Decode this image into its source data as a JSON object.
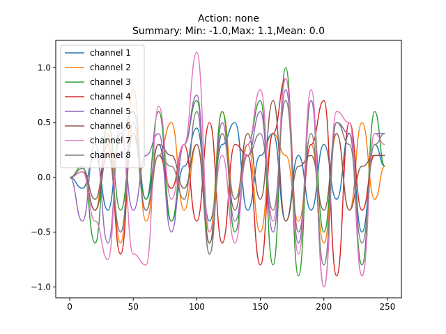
{
  "chart_data": {
    "type": "line",
    "title": "Action: none",
    "subtitle": "Summary: Min: -1.0,Max: 1.1,Mean: 0.0",
    "xlabel": "",
    "ylabel": "",
    "xlim": [
      -11,
      261
    ],
    "ylim": [
      -1.1,
      1.25
    ],
    "xticks": [
      "0",
      "50",
      "100",
      "150",
      "200",
      "250"
    ],
    "yticks": [
      "−1.0",
      "−0.5",
      "0.0",
      "0.5",
      "1.0"
    ],
    "grid": false,
    "legend": "top-left",
    "series": [
      {
        "name": "channel 1",
        "color": "#1f77b4",
        "x": [
          0,
          10,
          20,
          30,
          40,
          50,
          60,
          70,
          80,
          90,
          100,
          110,
          120,
          130,
          140,
          150,
          160,
          170,
          180,
          190,
          200,
          210,
          220,
          230,
          240,
          248
        ],
        "y": [
          0.0,
          -0.1,
          0.2,
          -0.3,
          0.4,
          0.6,
          -0.2,
          0.3,
          -0.4,
          0.1,
          0.45,
          -0.4,
          0.3,
          0.5,
          -0.3,
          0.2,
          0.4,
          -0.4,
          0.2,
          -0.3,
          0.3,
          -0.2,
          0.4,
          -0.5,
          0.3,
          0.1
        ]
      },
      {
        "name": "channel 2",
        "color": "#ff7f0e",
        "x": [
          0,
          10,
          20,
          30,
          40,
          50,
          60,
          70,
          80,
          90,
          100,
          110,
          120,
          130,
          140,
          150,
          160,
          170,
          180,
          190,
          200,
          210,
          220,
          230,
          240,
          248
        ],
        "y": [
          0.0,
          0.05,
          -0.3,
          0.4,
          -0.6,
          0.8,
          -0.4,
          0.2,
          0.5,
          -0.3,
          0.3,
          -0.5,
          0.6,
          -0.2,
          0.3,
          -0.5,
          0.4,
          0.2,
          -0.4,
          0.3,
          -0.6,
          0.4,
          -0.3,
          0.5,
          -0.2,
          0.1
        ]
      },
      {
        "name": "channel 3",
        "color": "#2ca02c",
        "x": [
          0,
          10,
          20,
          30,
          40,
          50,
          60,
          70,
          80,
          90,
          100,
          110,
          120,
          130,
          140,
          150,
          160,
          170,
          180,
          190,
          200,
          210,
          220,
          230,
          240,
          248
        ],
        "y": [
          0.0,
          0.1,
          -0.6,
          0.5,
          -0.3,
          0.4,
          -0.2,
          0.6,
          -0.4,
          0.3,
          0.7,
          -0.6,
          0.6,
          -0.5,
          0.3,
          0.7,
          -0.8,
          1.0,
          -0.9,
          0.7,
          -0.5,
          0.5,
          0.4,
          -0.8,
          0.6,
          0.1
        ]
      },
      {
        "name": "channel 4",
        "color": "#d62728",
        "x": [
          0,
          10,
          20,
          30,
          40,
          50,
          60,
          70,
          80,
          90,
          100,
          110,
          120,
          130,
          140,
          150,
          160,
          170,
          180,
          190,
          200,
          210,
          220,
          230,
          240,
          248
        ],
        "y": [
          0.0,
          0.05,
          -0.2,
          0.3,
          -0.7,
          0.5,
          -0.3,
          0.2,
          -0.1,
          0.3,
          -0.4,
          0.5,
          -0.6,
          0.3,
          0.2,
          -0.8,
          0.4,
          0.9,
          -0.5,
          0.3,
          0.7,
          -0.9,
          0.5,
          -0.3,
          0.2,
          0.2
        ]
      },
      {
        "name": "channel 5",
        "color": "#9467bd",
        "x": [
          0,
          10,
          20,
          30,
          40,
          50,
          60,
          70,
          80,
          90,
          100,
          110,
          120,
          130,
          140,
          150,
          160,
          170,
          180,
          190,
          200,
          210,
          220,
          230,
          240,
          248
        ],
        "y": [
          0.0,
          -0.4,
          0.3,
          -0.6,
          0.4,
          -0.3,
          0.2,
          0.4,
          -0.5,
          0.3,
          0.75,
          -0.7,
          0.5,
          -0.4,
          0.2,
          0.6,
          -0.5,
          0.8,
          -0.6,
          0.7,
          -1.0,
          0.5,
          0.4,
          -0.9,
          0.4,
          0.4
        ]
      },
      {
        "name": "channel 6",
        "color": "#8c564b",
        "x": [
          0,
          10,
          20,
          30,
          40,
          50,
          60,
          70,
          80,
          90,
          100,
          110,
          120,
          130,
          140,
          150,
          160,
          170,
          180,
          190,
          200,
          210,
          220,
          230,
          240,
          248
        ],
        "y": [
          0.0,
          0.05,
          -0.3,
          0.2,
          -0.5,
          0.4,
          -0.3,
          0.3,
          0.2,
          -0.1,
          0.3,
          -0.6,
          0.4,
          -0.3,
          0.4,
          -0.2,
          0.7,
          -0.4,
          0.1,
          0.2,
          -0.3,
          0.4,
          -0.3,
          0.1,
          0.2,
          0.2
        ]
      },
      {
        "name": "channel 7",
        "color": "#e377c2",
        "x": [
          0,
          10,
          20,
          30,
          40,
          50,
          60,
          70,
          80,
          90,
          100,
          110,
          120,
          130,
          140,
          150,
          160,
          170,
          180,
          190,
          200,
          210,
          220,
          230,
          240,
          248
        ],
        "y": [
          0.0,
          0.05,
          -0.4,
          -0.75,
          0.5,
          -0.7,
          -0.8,
          0.65,
          -0.2,
          0.3,
          1.14,
          -0.5,
          0.2,
          -0.6,
          0.3,
          0.8,
          -0.4,
          0.9,
          -0.7,
          0.8,
          -1.0,
          0.6,
          0.5,
          -0.9,
          0.4,
          0.3
        ]
      },
      {
        "name": "channel 8",
        "color": "#7f7f7f",
        "x": [
          0,
          10,
          20,
          30,
          40,
          50,
          60,
          70,
          80,
          90,
          100,
          110,
          120,
          130,
          140,
          150,
          160,
          170,
          180,
          190,
          200,
          210,
          220,
          230,
          240,
          248
        ],
        "y": [
          0.0,
          0.08,
          -0.2,
          0.2,
          -0.5,
          0.5,
          -0.3,
          0.2,
          0.1,
          -0.2,
          0.6,
          -0.7,
          0.4,
          -0.2,
          0.2,
          0.4,
          -0.3,
          0.7,
          -0.5,
          0.4,
          -0.8,
          0.5,
          0.3,
          -0.6,
          0.3,
          0.4
        ]
      }
    ]
  }
}
